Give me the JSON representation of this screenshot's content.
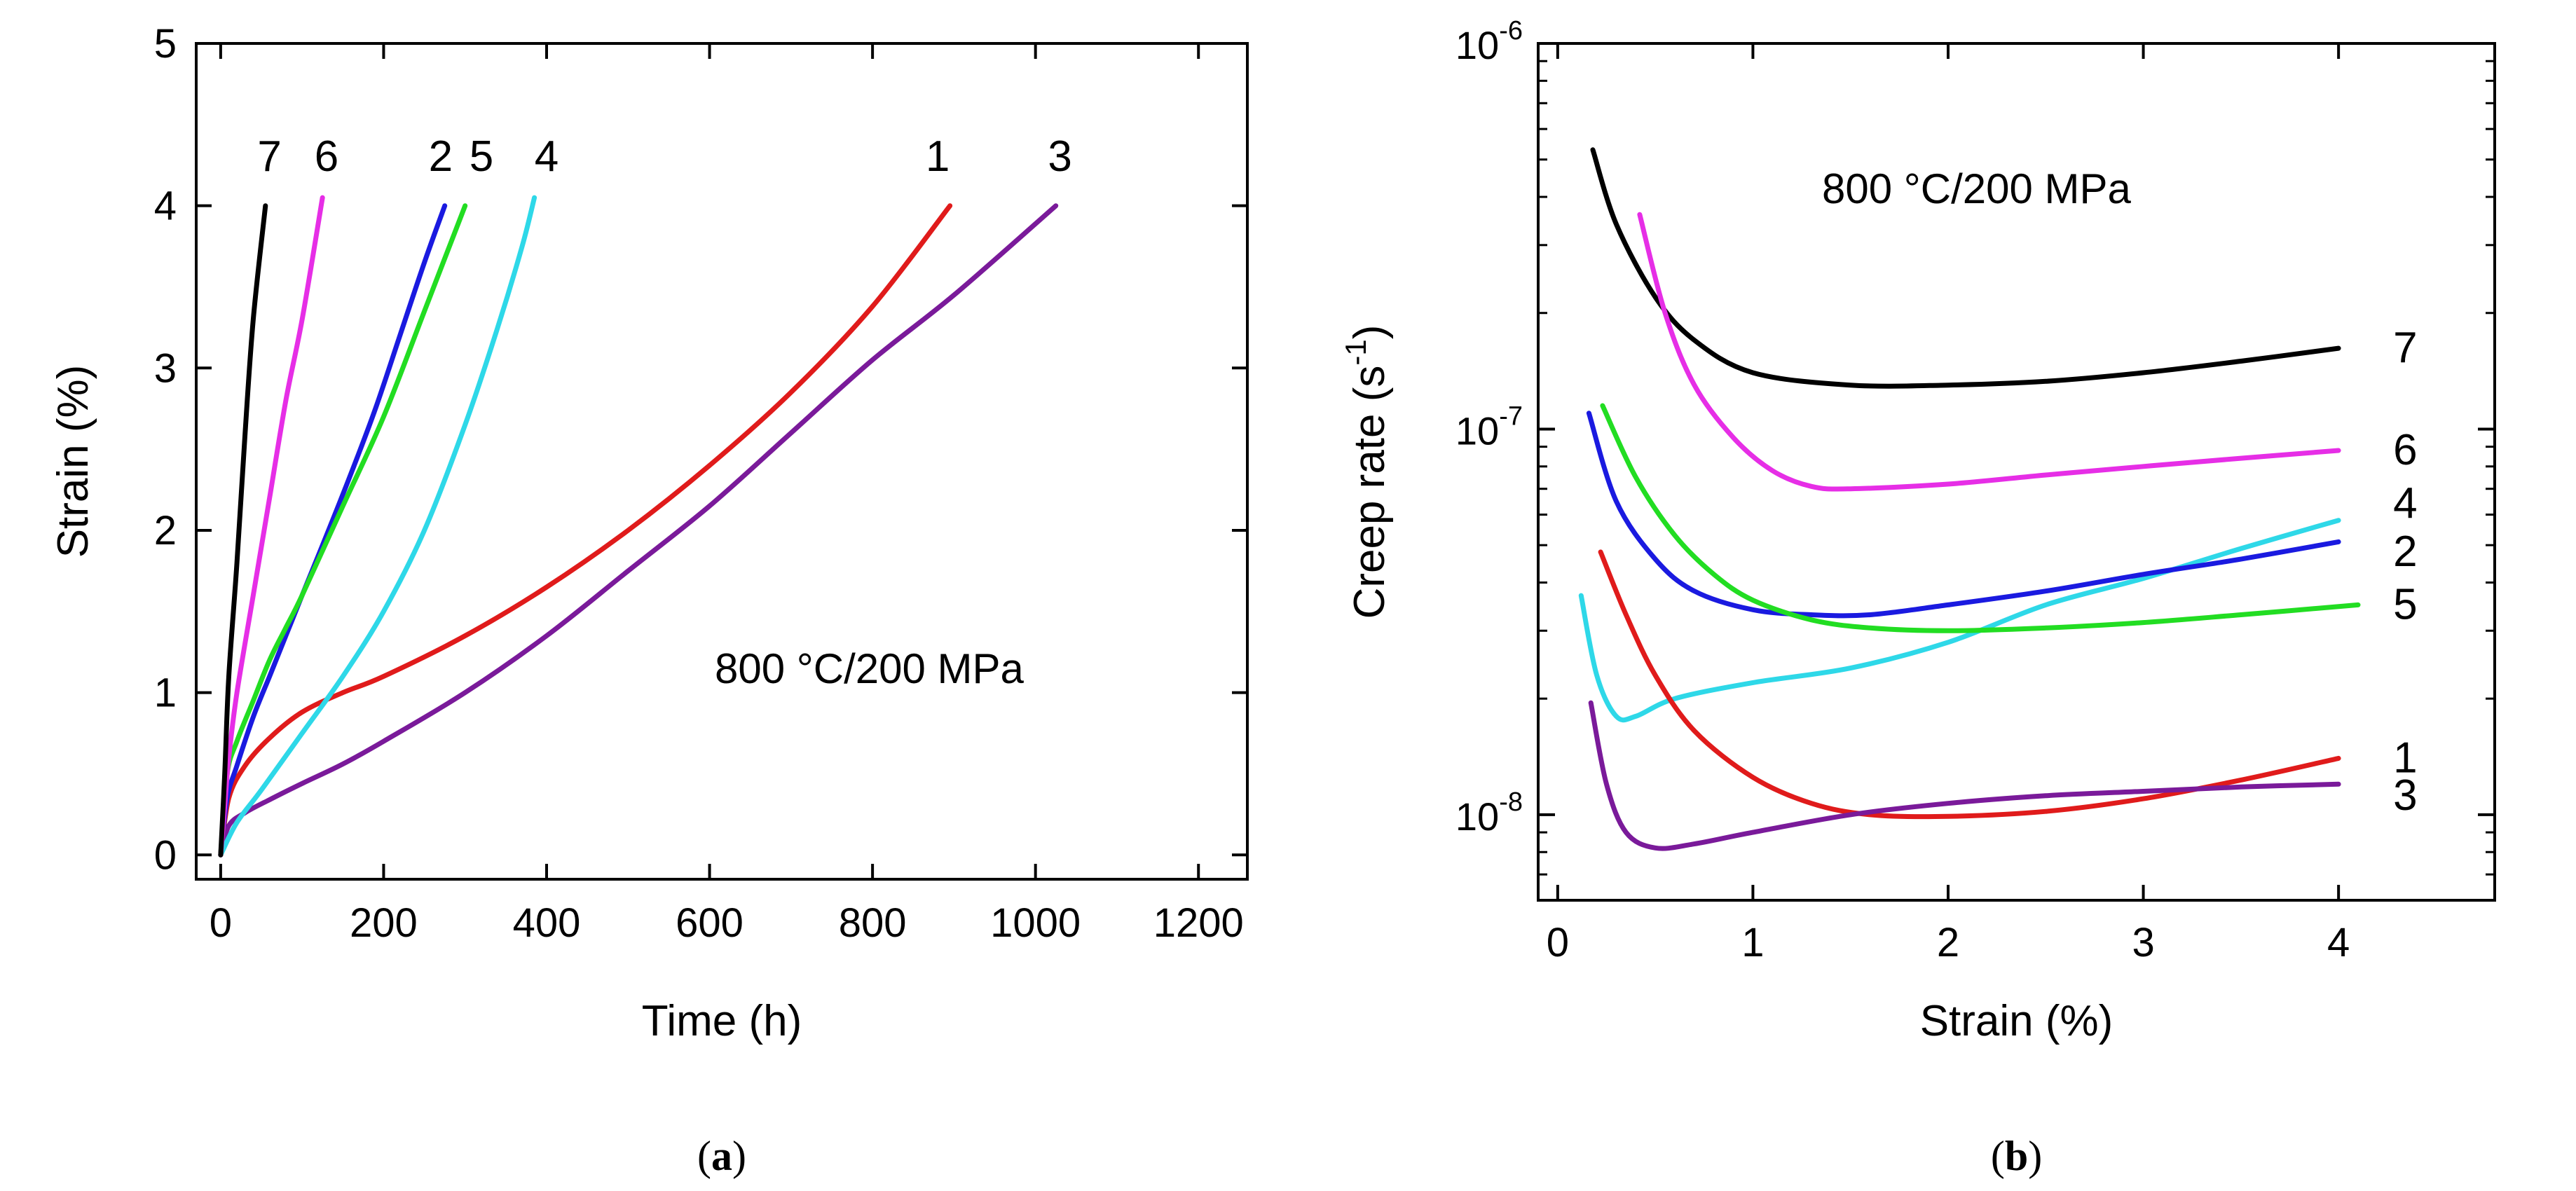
{
  "chart_data": [
    {
      "type": "line",
      "panel_label_parts": [
        "(",
        "a",
        ")"
      ],
      "annotation": "800 °C/200 MPa",
      "xlabel": "Time (h)",
      "ylabel": "Strain (%)",
      "xlim": [
        -30,
        1260
      ],
      "ylim": [
        -0.15,
        5
      ],
      "xticks": [
        0,
        200,
        400,
        600,
        800,
        1000,
        1200
      ],
      "xtick_labels": [
        "0",
        "200",
        "400",
        "600",
        "800",
        "1000",
        "1200"
      ],
      "yticks": [
        0,
        1,
        2,
        3,
        4,
        5
      ],
      "ytick_labels": [
        "0",
        "1",
        "2",
        "3",
        "4",
        "5"
      ],
      "series": [
        {
          "name": "1",
          "color": "#e01b1b",
          "x": [
            0,
            10,
            30,
            60,
            100,
            150,
            200,
            300,
            400,
            500,
            600,
            700,
            800,
            895
          ],
          "y": [
            0,
            0.35,
            0.55,
            0.72,
            0.88,
            1.0,
            1.1,
            1.35,
            1.65,
            2.0,
            2.4,
            2.85,
            3.38,
            4.0
          ]
        },
        {
          "name": "2",
          "color": "#1a1ae0",
          "x": [
            0,
            8,
            20,
            40,
            60,
            80,
            100,
            130,
            160,
            190,
            220,
            250,
            275
          ],
          "y": [
            0,
            0.35,
            0.55,
            0.85,
            1.1,
            1.35,
            1.6,
            1.97,
            2.35,
            2.75,
            3.2,
            3.65,
            4.0
          ]
        },
        {
          "name": "3",
          "color": "#7a1a9a",
          "x": [
            0,
            10,
            30,
            60,
            100,
            150,
            200,
            300,
            400,
            500,
            600,
            700,
            800,
            900,
            1025
          ],
          "y": [
            0,
            0.18,
            0.26,
            0.34,
            0.44,
            0.56,
            0.7,
            1.0,
            1.35,
            1.75,
            2.15,
            2.6,
            3.05,
            3.45,
            4.0
          ]
        },
        {
          "name": "4",
          "color": "#2ed8e8",
          "x": [
            0,
            20,
            50,
            100,
            150,
            200,
            250,
            300,
            340,
            370,
            385
          ],
          "y": [
            0,
            0.2,
            0.4,
            0.75,
            1.1,
            1.5,
            2.0,
            2.65,
            3.25,
            3.75,
            4.05
          ]
        },
        {
          "name": "5",
          "color": "#22dd22",
          "x": [
            0,
            8,
            20,
            40,
            60,
            80,
            100,
            150,
            200,
            250,
            300
          ],
          "y": [
            0,
            0.5,
            0.7,
            0.95,
            1.2,
            1.4,
            1.6,
            2.15,
            2.7,
            3.35,
            4.0
          ]
        },
        {
          "name": "6",
          "color": "#e62ee6",
          "x": [
            0,
            5,
            10,
            20,
            40,
            60,
            80,
            100,
            125
          ],
          "y": [
            0,
            0.3,
            0.6,
            1.0,
            1.6,
            2.2,
            2.8,
            3.3,
            4.05
          ]
        },
        {
          "name": "7",
          "color": "#000000",
          "x": [
            0,
            5,
            10,
            20,
            30,
            40,
            55
          ],
          "y": [
            0,
            0.5,
            1.1,
            1.8,
            2.6,
            3.3,
            4.0
          ]
        }
      ],
      "line_labels": [
        {
          "text": "7",
          "x": 60,
          "y": 4.3
        },
        {
          "text": "6",
          "x": 130,
          "y": 4.3
        },
        {
          "text": "2",
          "x": 270,
          "y": 4.3
        },
        {
          "text": "5",
          "x": 320,
          "y": 4.3
        },
        {
          "text": "4",
          "x": 400,
          "y": 4.3
        },
        {
          "text": "1",
          "x": 880,
          "y": 4.3
        },
        {
          "text": "3",
          "x": 1030,
          "y": 4.3
        }
      ]
    },
    {
      "type": "line",
      "yscale": "log",
      "panel_label_parts": [
        "(",
        "b",
        ")"
      ],
      "annotation": "800 °C/200 MPa",
      "xlabel": "Strain (%)",
      "ylabel": "Creep rate (s",
      "ylabel_sup": "-1",
      "ylabel_close": ")",
      "xlim": [
        -0.1,
        4.8
      ],
      "ylim": [
        6e-09,
        1e-06
      ],
      "xticks": [
        0,
        1,
        2,
        3,
        4
      ],
      "xtick_labels": [
        "0",
        "1",
        "2",
        "3",
        "4"
      ],
      "yticks": [
        1e-08,
        1e-07,
        1e-06
      ],
      "ytick_base": "10",
      "ytick_exps": [
        "-8",
        "-7",
        "-6"
      ],
      "series": [
        {
          "name": "7",
          "color": "#000000",
          "x": [
            0.18,
            0.3,
            0.5,
            0.7,
            1.0,
            1.5,
            2.0,
            2.5,
            3.0,
            3.5,
            4.0
          ],
          "y": [
            5.3e-07,
            3.4e-07,
            2.2e-07,
            1.7e-07,
            1.4e-07,
            1.3e-07,
            1.3e-07,
            1.33e-07,
            1.4e-07,
            1.5e-07,
            1.62e-07
          ]
        },
        {
          "name": "6",
          "color": "#e62ee6",
          "x": [
            0.42,
            0.55,
            0.7,
            0.9,
            1.1,
            1.3,
            1.5,
            2.0,
            2.5,
            3.0,
            3.5,
            4.0
          ],
          "y": [
            3.6e-07,
            2e-07,
            1.3e-07,
            9.5e-08,
            7.8e-08,
            7.1e-08,
            7e-08,
            7.2e-08,
            7.6e-08,
            8e-08,
            8.4e-08,
            8.8e-08
          ]
        },
        {
          "name": "4",
          "color": "#2ed8e8",
          "x": [
            0.12,
            0.2,
            0.3,
            0.4,
            0.6,
            1.0,
            1.5,
            2.0,
            2.5,
            3.0,
            3.5,
            4.0
          ],
          "y": [
            3.7e-08,
            2.3e-08,
            1.8e-08,
            1.8e-08,
            2e-08,
            2.2e-08,
            2.4e-08,
            2.8e-08,
            3.5e-08,
            4.1e-08,
            4.9e-08,
            5.8e-08
          ]
        },
        {
          "name": "2",
          "color": "#1a1ae0",
          "x": [
            0.16,
            0.3,
            0.5,
            0.7,
            1.0,
            1.3,
            1.6,
            2.0,
            2.5,
            3.0,
            3.5,
            4.0
          ],
          "y": [
            1.1e-07,
            6.5e-08,
            4.6e-08,
            3.8e-08,
            3.4e-08,
            3.3e-08,
            3.3e-08,
            3.5e-08,
            3.8e-08,
            4.2e-08,
            4.6e-08,
            5.1e-08
          ]
        },
        {
          "name": "5",
          "color": "#22dd22",
          "x": [
            0.23,
            0.4,
            0.6,
            0.8,
            1.0,
            1.3,
            1.6,
            2.0,
            2.5,
            3.0,
            3.5,
            4.1
          ],
          "y": [
            1.15e-07,
            7.5e-08,
            5.3e-08,
            4.2e-08,
            3.6e-08,
            3.2e-08,
            3.05e-08,
            3e-08,
            3.05e-08,
            3.15e-08,
            3.3e-08,
            3.5e-08
          ]
        },
        {
          "name": "1",
          "color": "#e01b1b",
          "x": [
            0.22,
            0.35,
            0.5,
            0.7,
            1.0,
            1.3,
            1.6,
            2.0,
            2.5,
            3.0,
            3.5,
            4.0
          ],
          "y": [
            4.8e-08,
            3.3e-08,
            2.3e-08,
            1.65e-08,
            1.25e-08,
            1.07e-08,
            1e-08,
            9.9e-09,
            1.02e-08,
            1.1e-08,
            1.23e-08,
            1.4e-08
          ]
        },
        {
          "name": "3",
          "color": "#7a1a9a",
          "x": [
            0.17,
            0.25,
            0.35,
            0.5,
            0.7,
            1.0,
            1.5,
            2.0,
            2.5,
            3.0,
            3.5,
            4.0
          ],
          "y": [
            1.95e-08,
            1.2e-08,
            9e-09,
            8.2e-09,
            8.4e-09,
            9e-09,
            1e-08,
            1.07e-08,
            1.12e-08,
            1.15e-08,
            1.18e-08,
            1.2e-08
          ]
        }
      ],
      "line_labels": [
        {
          "text": "7",
          "x": 4.28,
          "y": 1.62e-07
        },
        {
          "text": "6",
          "x": 4.28,
          "y": 8.8e-08
        },
        {
          "text": "4",
          "x": 4.28,
          "y": 6.4e-08
        },
        {
          "text": "2",
          "x": 4.28,
          "y": 4.8e-08
        },
        {
          "text": "5",
          "x": 4.28,
          "y": 3.5e-08
        },
        {
          "text": "1",
          "x": 4.28,
          "y": 1.4e-08
        },
        {
          "text": "3",
          "x": 4.28,
          "y": 1.12e-08
        }
      ]
    }
  ]
}
